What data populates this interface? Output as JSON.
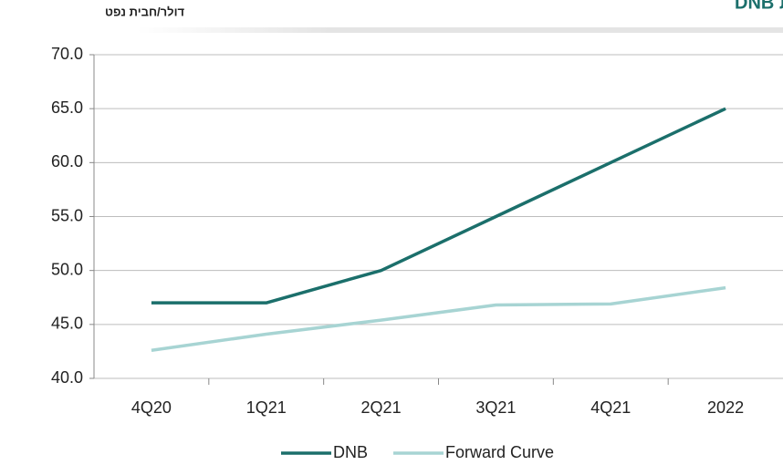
{
  "chart_data": {
    "type": "line",
    "title": "תחזית מחירים - Forward Curve לעומת תחזית DNB",
    "y_label": "דולר/חבית נפט",
    "categories": [
      "4Q20",
      "1Q21",
      "2Q21",
      "3Q21",
      "4Q21",
      "2022"
    ],
    "series": [
      {
        "name": "DNB",
        "color": "#1b6f6b",
        "values": [
          47,
          47,
          50,
          55,
          60,
          65
        ]
      },
      {
        "name": "Forward Curve",
        "color": "#a7d4d3",
        "values": [
          42.6,
          44.1,
          45.4,
          46.8,
          46.9,
          48.4
        ]
      }
    ],
    "ylim": [
      40,
      70
    ],
    "yticks": [
      {
        "value": 40,
        "label": "40.0"
      },
      {
        "value": 45,
        "label": "45.0"
      },
      {
        "value": 50,
        "label": "50.0"
      },
      {
        "value": 55,
        "label": "55.0"
      },
      {
        "value": 60,
        "label": "60.0"
      },
      {
        "value": 65,
        "label": "65.0"
      },
      {
        "value": 70,
        "label": "70.0"
      }
    ],
    "grid": true,
    "legend": "bottom"
  }
}
